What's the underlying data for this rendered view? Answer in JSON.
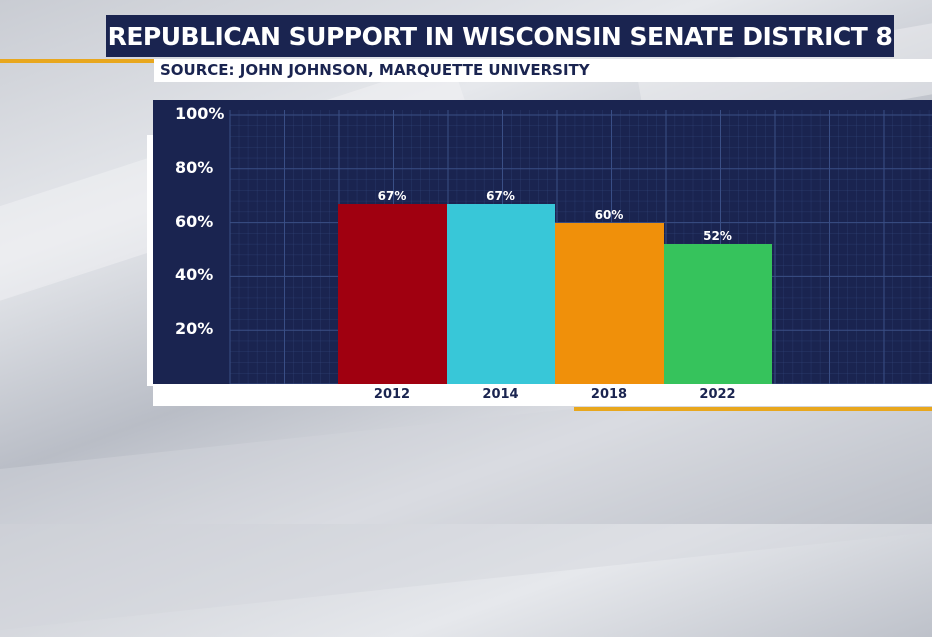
{
  "chart_data": {
    "type": "bar",
    "title": "REPUBLICAN SUPPORT IN WISCONSIN SENATE DISTRICT 8",
    "subtitle": "SOURCE: JOHN JOHNSON, MARQUETTE UNIVERSITY",
    "categories": [
      "2012",
      "2014",
      "2018",
      "2022"
    ],
    "values": [
      67,
      67,
      60,
      52
    ],
    "value_labels": [
      "67%",
      "67%",
      "60%",
      "52%"
    ],
    "bar_colors": [
      "#a00010",
      "#38c7d8",
      "#f0900a",
      "#36c35c"
    ],
    "yticks": [
      "100%",
      "80%",
      "60%",
      "40%",
      "20%"
    ],
    "ytick_values": [
      100,
      80,
      60,
      40,
      20
    ],
    "ylim": [
      0,
      100
    ],
    "grid": true
  },
  "colors": {
    "navy": "#1a2450",
    "gold": "#e8a71e",
    "grid": "#3a4f86"
  }
}
